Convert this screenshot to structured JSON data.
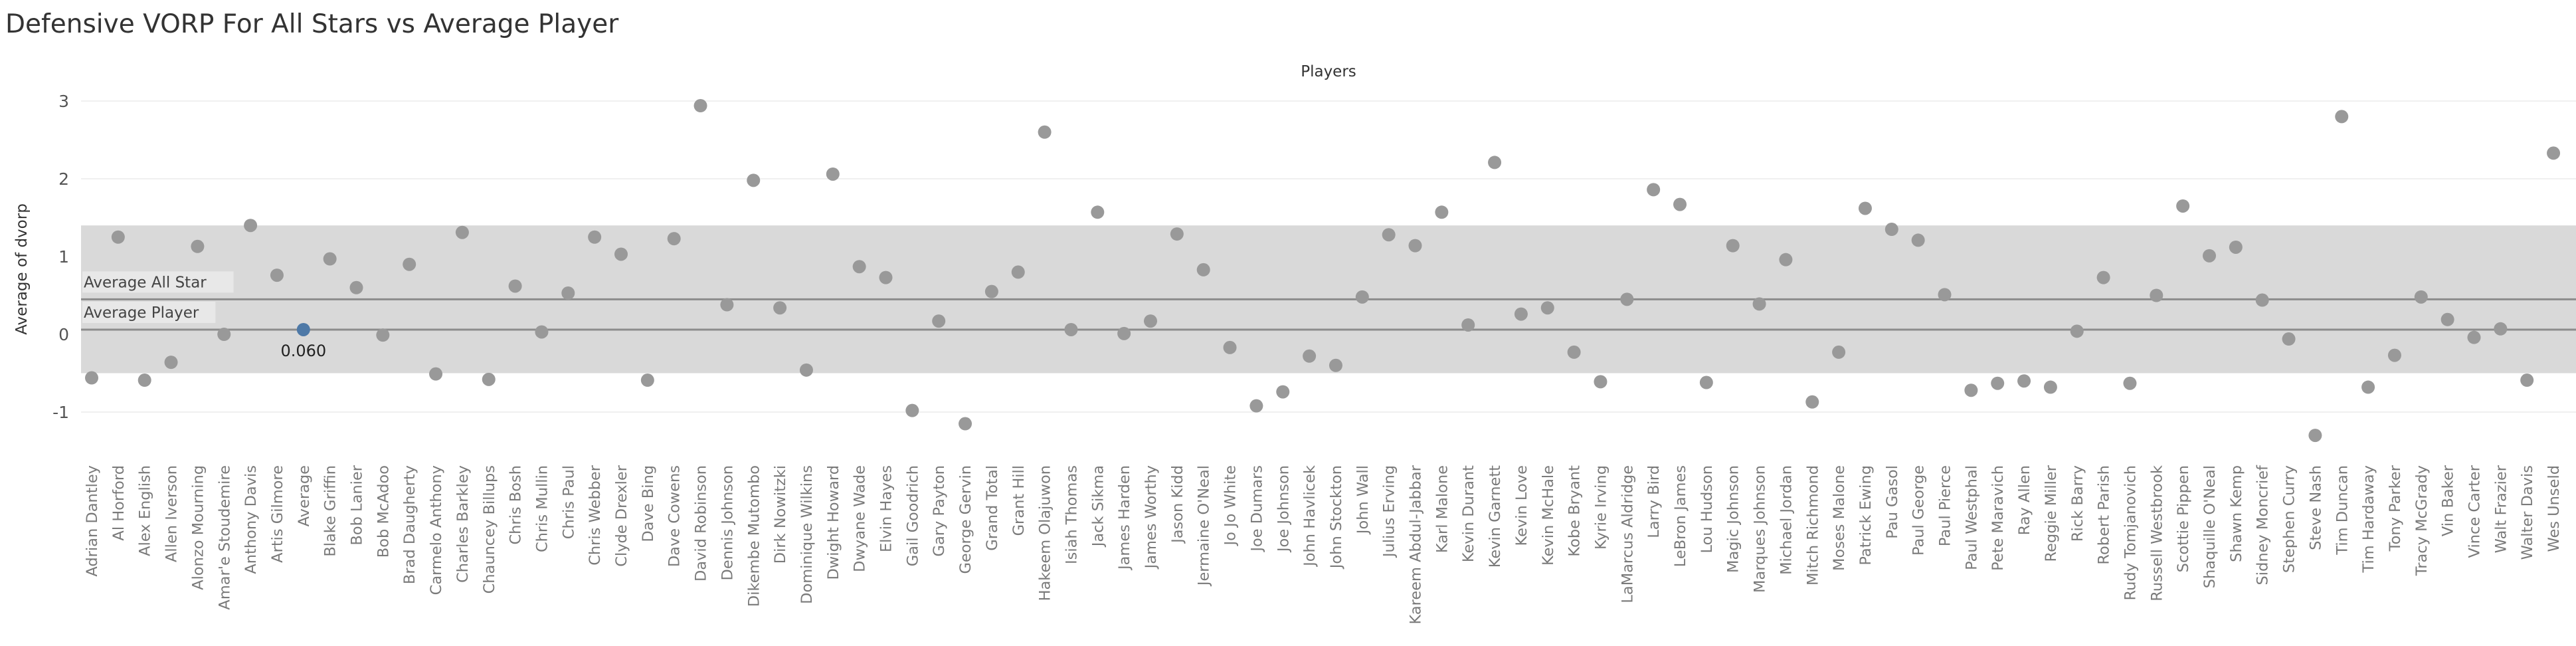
{
  "chart_data": {
    "type": "scatter",
    "title": "Defensive VORP For All Stars vs Average Player",
    "column_header": "Players",
    "ylabel": "Average of dvorp",
    "ylim": [
      -1.6,
      3.25
    ],
    "yticks": [
      -1,
      0,
      1,
      2,
      3
    ],
    "grid": true,
    "band": [
      -0.5,
      1.4
    ],
    "reference_lines": [
      {
        "label": "Average All Star",
        "value": 0.45
      },
      {
        "label": "Average Player",
        "value": 0.06
      }
    ],
    "highlight": {
      "category": "Average",
      "label": "0.060"
    },
    "colors": {
      "point": "#999999",
      "highlight": "#4e79a7",
      "band": "#d9d9d9",
      "line": "#8c8c8c"
    },
    "categories": [
      "Adrian Dantley",
      "Al Horford",
      "Alex English",
      "Allen Iverson",
      "Alonzo Mourning",
      "Amar'e Stoudemire",
      "Anthony Davis",
      "Artis Gilmore",
      "Average",
      "Blake Griffin",
      "Bob Lanier",
      "Bob McAdoo",
      "Brad Daugherty",
      "Carmelo Anthony",
      "Charles Barkley",
      "Chauncey Billups",
      "Chris Bosh",
      "Chris Mullin",
      "Chris Paul",
      "Chris Webber",
      "Clyde Drexler",
      "Dave Bing",
      "Dave Cowens",
      "David Robinson",
      "Dennis Johnson",
      "Dikembe Mutombo",
      "Dirk Nowitzki",
      "Dominique Wilkins",
      "Dwight Howard",
      "Dwyane Wade",
      "Elvin Hayes",
      "Gail Goodrich",
      "Gary Payton",
      "George Gervin",
      "Grand Total",
      "Grant Hill",
      "Hakeem Olajuwon",
      "Isiah Thomas",
      "Jack Sikma",
      "James Harden",
      "James Worthy",
      "Jason Kidd",
      "Jermaine O'Neal",
      "Jo Jo White",
      "Joe Dumars",
      "Joe Johnson",
      "John Havlicek",
      "John Stockton",
      "John Wall",
      "Julius Erving",
      "Kareem Abdul-Jabbar",
      "Karl Malone",
      "Kevin Durant",
      "Kevin Garnett",
      "Kevin Love",
      "Kevin McHale",
      "Kobe Bryant",
      "Kyrie Irving",
      "LaMarcus Aldridge",
      "Larry Bird",
      "LeBron James",
      "Lou Hudson",
      "Magic Johnson",
      "Marques Johnson",
      "Michael Jordan",
      "Mitch Richmond",
      "Moses Malone",
      "Patrick Ewing",
      "Pau Gasol",
      "Paul George",
      "Paul Pierce",
      "Paul Westphal",
      "Pete Maravich",
      "Ray Allen",
      "Reggie Miller",
      "Rick Barry",
      "Robert Parish",
      "Rudy Tomjanovich",
      "Russell Westbrook",
      "Scottie Pippen",
      "Shaquille O'Neal",
      "Shawn Kemp",
      "Sidney Moncrief",
      "Stephen Curry",
      "Steve Nash",
      "Tim Duncan",
      "Tim Hardaway",
      "Tony Parker",
      "Tracy McGrady",
      "Vin Baker",
      "Vince Carter",
      "Walt Frazier",
      "Walter Davis",
      "Wes Unseld"
    ],
    "values": [
      -0.56,
      1.25,
      -0.59,
      -0.36,
      1.13,
      0.0,
      1.4,
      0.76,
      0.06,
      0.97,
      0.6,
      -0.01,
      0.9,
      -0.51,
      1.31,
      -0.58,
      0.62,
      0.03,
      0.53,
      1.25,
      1.03,
      -0.59,
      1.23,
      2.94,
      0.38,
      1.98,
      0.34,
      -0.46,
      2.06,
      0.87,
      0.73,
      -0.98,
      0.17,
      -1.15,
      0.55,
      0.8,
      2.6,
      0.06,
      1.57,
      0.01,
      0.17,
      1.29,
      0.83,
      -0.17,
      -0.92,
      -0.74,
      -0.28,
      -0.4,
      0.48,
      1.28,
      1.14,
      1.57,
      0.12,
      2.21,
      0.26,
      0.34,
      -0.23,
      -0.61,
      0.45,
      1.86,
      1.67,
      -0.62,
      1.14,
      0.39,
      0.96,
      -0.87,
      -0.23,
      1.62,
      1.35,
      1.21,
      0.51,
      -0.72,
      -0.63,
      -0.6,
      -0.68,
      0.04,
      0.73,
      -0.63,
      0.5,
      1.65,
      1.01,
      1.12,
      0.44,
      -0.06,
      -1.3,
      2.8,
      -0.68,
      -0.27,
      0.48,
      0.19,
      -0.04,
      0.07,
      -0.59,
      2.33
    ]
  }
}
